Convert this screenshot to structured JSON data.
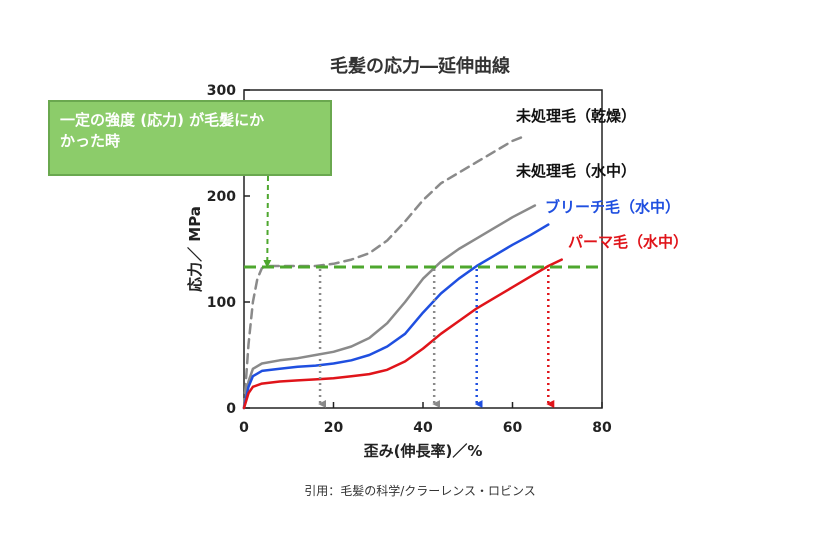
{
  "citation": "引用：毛髪の科学/クラーレンス・ロビンス",
  "colors": {
    "gray": "#8a8a8a",
    "blue": "#1f4fe0",
    "red": "#e0141a",
    "green": "#4ea72e",
    "callout_bg": "#8ccc6a"
  },
  "chart_data": {
    "type": "line",
    "title": "毛髪の応力―延伸曲線",
    "xlabel": "歪み(伸長率)／%",
    "ylabel": "応力／ MPa",
    "xlim": [
      0,
      80
    ],
    "ylim": [
      0,
      300
    ],
    "xticks": [
      0,
      20,
      40,
      60,
      80
    ],
    "yticks": [
      0,
      100,
      200,
      300
    ],
    "grid": false,
    "annotation": {
      "text_lines": [
        "一定の強度 (応力) が毛髪にか",
        "かった時"
      ],
      "stress_level": 133
    },
    "series": [
      {
        "name": "未処理毛（乾燥）",
        "style": "dashed",
        "color": "#8a8a8a",
        "x": [
          0,
          1,
          2,
          3,
          4,
          5,
          8,
          12,
          16,
          20,
          24,
          28,
          32,
          36,
          40,
          44,
          48,
          52,
          56,
          60,
          63
        ],
        "y": [
          0,
          60,
          100,
          122,
          132,
          134,
          134,
          134,
          134,
          136,
          140,
          146,
          158,
          176,
          196,
          212,
          222,
          232,
          242,
          252,
          257
        ]
      },
      {
        "name": "未処理毛（水中）",
        "style": "solid",
        "color": "#8a8a8a",
        "x": [
          0,
          1,
          2,
          4,
          8,
          12,
          16,
          20,
          24,
          28,
          32,
          36,
          40,
          44,
          48,
          52,
          56,
          60,
          65
        ],
        "y": [
          0,
          25,
          37,
          42,
          45,
          47,
          50,
          53,
          58,
          66,
          80,
          100,
          122,
          138,
          150,
          160,
          170,
          180,
          191
        ]
      },
      {
        "name": "ブリーチ毛（水中）",
        "style": "solid",
        "color": "#1f4fe0",
        "x": [
          0,
          1,
          2,
          4,
          8,
          12,
          16,
          20,
          24,
          28,
          32,
          36,
          40,
          44,
          48,
          52,
          56,
          60,
          64,
          68
        ],
        "y": [
          0,
          20,
          30,
          35,
          37,
          39,
          40,
          42,
          45,
          50,
          58,
          70,
          90,
          108,
          122,
          134,
          144,
          154,
          163,
          173
        ]
      },
      {
        "name": "パーマ毛（水中）",
        "style": "solid",
        "color": "#e0141a",
        "x": [
          0,
          1,
          2,
          4,
          8,
          12,
          16,
          20,
          24,
          28,
          32,
          36,
          40,
          44,
          48,
          52,
          56,
          60,
          64,
          68,
          71
        ],
        "y": [
          0,
          14,
          20,
          23,
          25,
          26,
          27,
          28,
          30,
          32,
          36,
          44,
          56,
          70,
          82,
          94,
          104,
          114,
          124,
          134,
          140
        ]
      }
    ],
    "drop_lines": [
      {
        "series": "未処理毛（乾燥）",
        "x": 17,
        "color": "#8a8a8a"
      },
      {
        "series": "未処理毛（水中）",
        "x": 42.5,
        "color": "#8a8a8a"
      },
      {
        "series": "ブリーチ毛（水中）",
        "x": 52,
        "color": "#1f4fe0"
      },
      {
        "series": "パーマ毛（水中）",
        "x": 68,
        "color": "#e0141a"
      }
    ]
  }
}
